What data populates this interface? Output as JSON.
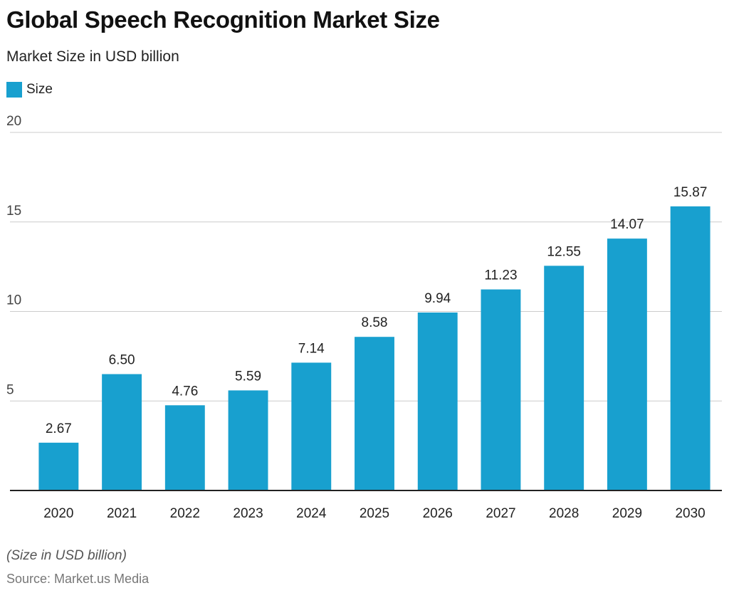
{
  "title": "Global Speech Recognition Market Size",
  "subtitle": "Market Size in USD billion",
  "note": "(Size in USD billion)",
  "source": "Source: Market.us Media",
  "colors": {
    "bar": "#18a0cf",
    "grid": "#cccccc",
    "axis": "#222222"
  },
  "chart_data": {
    "type": "bar",
    "categories": [
      "2020",
      "2021",
      "2022",
      "2023",
      "2024",
      "2025",
      "2026",
      "2027",
      "2028",
      "2029",
      "2030"
    ],
    "series": [
      {
        "name": "Size",
        "values": [
          2.67,
          6.5,
          4.76,
          5.59,
          7.14,
          8.58,
          9.94,
          11.23,
          12.55,
          14.07,
          15.87
        ],
        "labels": [
          "2.67",
          "6.50",
          "4.76",
          "5.59",
          "7.14",
          "8.58",
          "9.94",
          "11.23",
          "12.55",
          "14.07",
          "15.87"
        ]
      }
    ],
    "ylim": [
      0,
      20
    ],
    "yticks": [
      5,
      10,
      15,
      20
    ],
    "ytick_labels": [
      "5",
      "10",
      "15",
      "20"
    ],
    "grid": true,
    "legend": "top-left"
  }
}
